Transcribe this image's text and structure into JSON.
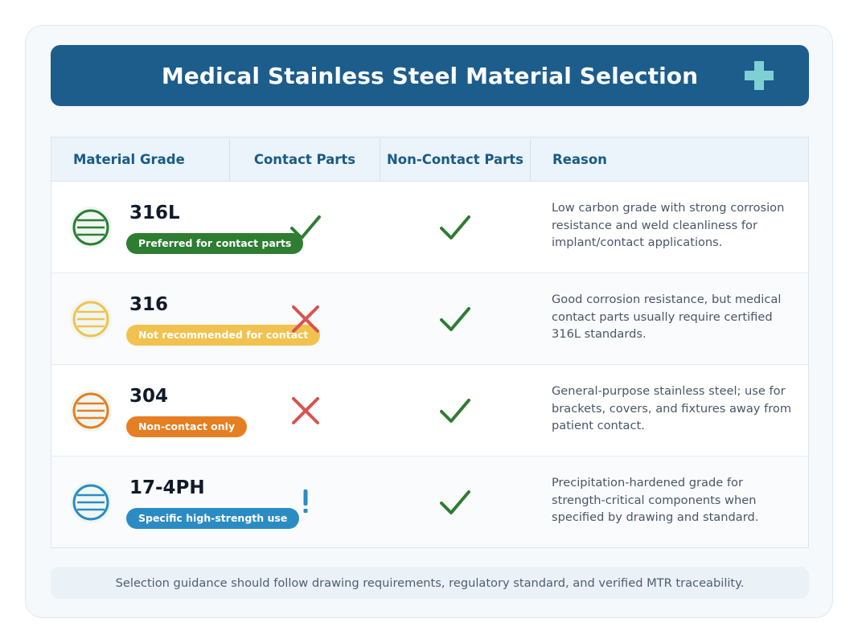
{
  "header": {
    "title": "Medical Stainless Steel Material Selection",
    "icon": "medical-cross-icon",
    "accent_color": "#1c5d8c"
  },
  "table": {
    "columns": [
      "Material Grade",
      "Contact Parts",
      "Non-Contact Parts",
      "Reason"
    ],
    "rows": [
      {
        "grade": "316L",
        "badge": "Preferred for contact parts",
        "color": "#2e7d32",
        "contact": "check",
        "non_contact": "check",
        "reason": "Low carbon grade with strong corrosion resistance and weld cleanliness for implant/contact applications."
      },
      {
        "grade": "316",
        "badge": "Not recommended for contact",
        "color": "#f2c24f",
        "contact": "cross",
        "non_contact": "check",
        "reason": "Good corrosion resistance, but medical contact parts usually require certified 316L standards."
      },
      {
        "grade": "304",
        "badge": "Non-contact only",
        "color": "#e67e22",
        "contact": "cross",
        "non_contact": "check",
        "reason": "General-purpose stainless steel; use for brackets, covers, and fixtures away from patient contact."
      },
      {
        "grade": "17-4PH",
        "badge": "Specific high-strength use",
        "color": "#2b8cc4",
        "contact": "caution",
        "non_contact": "check",
        "reason": "Precipitation-hardened grade for strength-critical components when specified by drawing and standard."
      }
    ]
  },
  "footer": {
    "note": "Selection guidance should follow drawing requirements, regulatory standard, and verified MTR traceability."
  },
  "status_colors": {
    "check": "#2e7d32",
    "cross": "#d9534f",
    "caution": "#2b8cc4"
  }
}
